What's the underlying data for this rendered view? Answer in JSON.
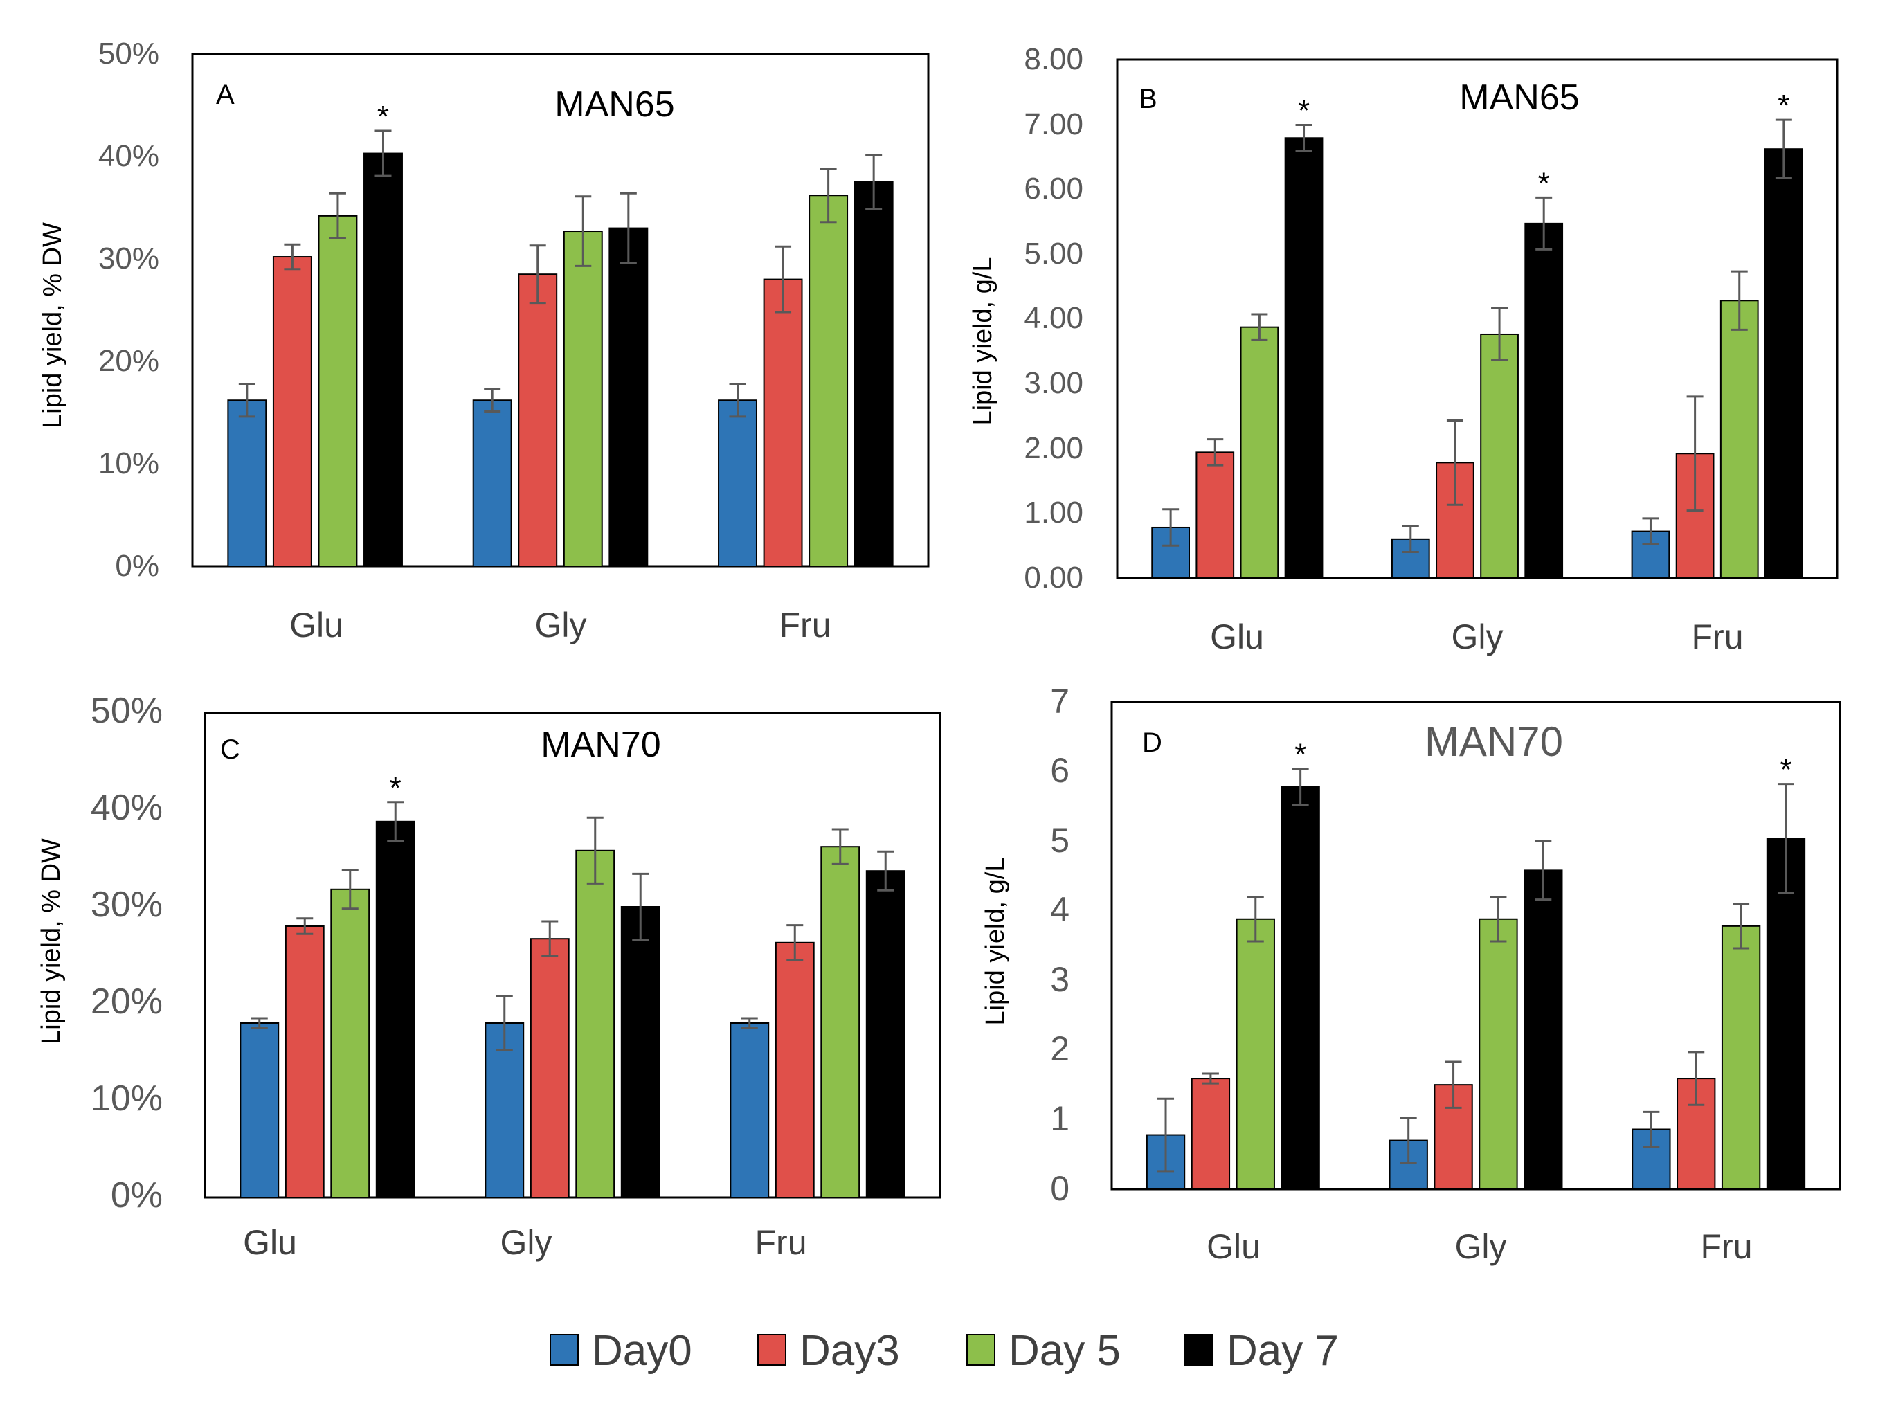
{
  "colors": {
    "day0": "#2e75b6",
    "day3": "#e0504a",
    "day5": "#8dbf4b",
    "day7": "#000000",
    "errorbar": "#595959",
    "axis": "#000000",
    "gridline": "#d9d9d9"
  },
  "legend": {
    "items": [
      {
        "name": "Day0",
        "color": "#2e75b6"
      },
      {
        "name": "Day3",
        "color": "#e0504a"
      },
      {
        "name": "Day 5",
        "color": "#8dbf4b"
      },
      {
        "name": "Day 7",
        "color": "#000000"
      }
    ]
  },
  "chart_data": [
    {
      "panel": "A",
      "title": "MAN65",
      "type": "bar",
      "ylabel": "Lipid yield, % DW",
      "ylim": [
        0,
        50
      ],
      "yticks": [
        "0%",
        "10%",
        "20%",
        "30%",
        "40%",
        "50%"
      ],
      "categories": [
        "Glu",
        "Gly",
        "Fru"
      ],
      "series": [
        {
          "name": "Day0",
          "values": [
            16.2,
            16.2,
            16.2
          ],
          "errors": [
            1.6,
            1.1,
            1.6
          ]
        },
        {
          "name": "Day3",
          "values": [
            30.2,
            28.5,
            28.0
          ],
          "errors": [
            1.2,
            2.8,
            3.2
          ]
        },
        {
          "name": "Day 5",
          "values": [
            34.2,
            32.7,
            36.2
          ],
          "errors": [
            2.2,
            3.4,
            2.6
          ]
        },
        {
          "name": "Day 7",
          "values": [
            40.3,
            33.0,
            37.5
          ],
          "errors": [
            2.2,
            3.4,
            2.6
          ]
        }
      ],
      "stars": [
        [
          0,
          3
        ]
      ]
    },
    {
      "panel": "B",
      "title": "MAN65",
      "type": "bar",
      "ylabel": "Lipid yield, g/L",
      "ylim": [
        0,
        8
      ],
      "yticks": [
        "0.00",
        "1.00",
        "2.00",
        "3.00",
        "4.00",
        "5.00",
        "6.00",
        "7.00",
        "8.00"
      ],
      "categories": [
        "Glu",
        "Gly",
        "Fru"
      ],
      "series": [
        {
          "name": "Day0",
          "values": [
            0.78,
            0.6,
            0.72
          ],
          "errors": [
            0.28,
            0.2,
            0.2
          ]
        },
        {
          "name": "Day3",
          "values": [
            1.94,
            1.78,
            1.92
          ],
          "errors": [
            0.2,
            0.65,
            0.88
          ]
        },
        {
          "name": "Day 5",
          "values": [
            3.87,
            3.76,
            4.28
          ],
          "errors": [
            0.2,
            0.4,
            0.45
          ]
        },
        {
          "name": "Day 7",
          "values": [
            6.79,
            5.47,
            6.62
          ],
          "errors": [
            0.2,
            0.4,
            0.45
          ]
        }
      ],
      "stars": [
        [
          0,
          3
        ],
        [
          1,
          3
        ],
        [
          2,
          3
        ]
      ]
    },
    {
      "panel": "C",
      "title": "MAN70",
      "type": "bar",
      "ylabel": "Lipid yield, % DW",
      "ylim": [
        0,
        50
      ],
      "yticks": [
        "0%",
        "10%",
        "20%",
        "30%",
        "40%",
        "50%"
      ],
      "categories": [
        "Glu",
        "Gly",
        "Fru"
      ],
      "series": [
        {
          "name": "Day0",
          "values": [
            18.0,
            18.0,
            18.0
          ],
          "errors": [
            0.5,
            2.8,
            0.5
          ]
        },
        {
          "name": "Day3",
          "values": [
            28.0,
            26.7,
            26.3
          ],
          "errors": [
            0.8,
            1.8,
            1.8
          ]
        },
        {
          "name": "Day 5",
          "values": [
            31.8,
            35.8,
            36.2
          ],
          "errors": [
            2.0,
            3.4,
            1.8
          ]
        },
        {
          "name": "Day 7",
          "values": [
            38.8,
            30.0,
            33.7
          ],
          "errors": [
            2.0,
            3.4,
            2.0
          ]
        }
      ],
      "stars": [
        [
          0,
          3
        ]
      ]
    },
    {
      "panel": "D",
      "title": "MAN70",
      "type": "bar",
      "ylabel": "Lipid yield, g/L",
      "ylim": [
        0,
        7
      ],
      "yticks": [
        "0",
        "1",
        "2",
        "3",
        "4",
        "5",
        "6",
        "7"
      ],
      "categories": [
        "Glu",
        "Gly",
        "Fru"
      ],
      "series": [
        {
          "name": "Day0",
          "values": [
            0.78,
            0.7,
            0.86
          ],
          "errors": [
            0.52,
            0.32,
            0.25
          ]
        },
        {
          "name": "Day3",
          "values": [
            1.59,
            1.5,
            1.59
          ],
          "errors": [
            0.07,
            0.33,
            0.38
          ]
        },
        {
          "name": "Day 5",
          "values": [
            3.88,
            3.88,
            3.78
          ],
          "errors": [
            0.32,
            0.32,
            0.32
          ]
        },
        {
          "name": "Day 7",
          "values": [
            5.78,
            4.58,
            5.04
          ],
          "errors": [
            0.26,
            0.42,
            0.78
          ]
        }
      ],
      "stars": [
        [
          0,
          3
        ],
        [
          2,
          3
        ]
      ]
    }
  ]
}
